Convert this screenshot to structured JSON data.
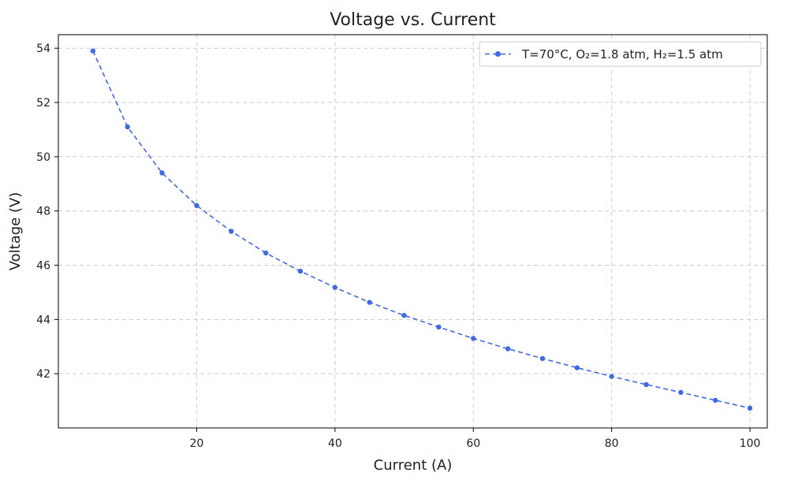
{
  "chart_data": {
    "type": "line",
    "title": "Voltage vs. Current",
    "xlabel": "Current (A)",
    "ylabel": "Voltage (V)",
    "xlim": [
      0,
      102.5
    ],
    "ylim": [
      40.0,
      54.5
    ],
    "xticks": [
      20,
      40,
      60,
      80,
      100
    ],
    "yticks": [
      42,
      44,
      46,
      48,
      50,
      52,
      54
    ],
    "grid": true,
    "legend_position": "top-right",
    "series": [
      {
        "name": "T=70°C, O₂=1.8 atm, H₂=1.5 atm",
        "color": "#4169e1",
        "line_style": "dashed",
        "marker": "circle",
        "x": [
          5,
          10,
          15,
          20,
          25,
          30,
          35,
          40,
          45,
          50,
          55,
          60,
          65,
          70,
          75,
          80,
          85,
          90,
          95,
          100
        ],
        "y": [
          53.9,
          51.1,
          49.4,
          48.2,
          47.25,
          46.45,
          45.78,
          45.18,
          44.63,
          44.15,
          43.72,
          43.3,
          42.92,
          42.56,
          42.22,
          41.9,
          41.6,
          41.31,
          41.02,
          40.73
        ]
      }
    ]
  }
}
